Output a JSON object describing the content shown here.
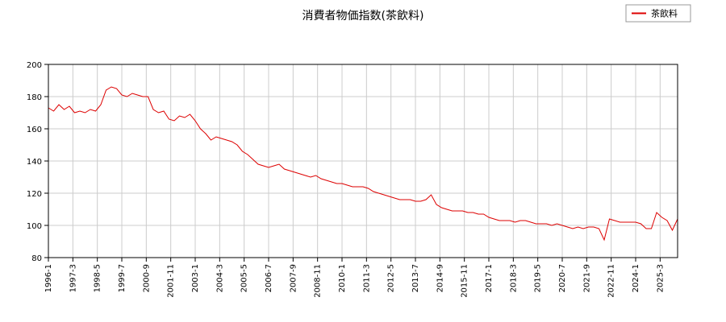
{
  "chart_data": {
    "type": "line",
    "title": "消費者物価指数(茶飲料)",
    "xlabel": "",
    "ylabel": "",
    "ylim": [
      80,
      200
    ],
    "yticks": [
      80,
      100,
      120,
      140,
      160,
      180,
      200
    ],
    "xlim": [
      "1996-01",
      "2026-01"
    ],
    "xtick_labels": [
      "1996-1",
      "1997-3",
      "1998-5",
      "1999-7",
      "2000-9",
      "2001-11",
      "2003-1",
      "2004-3",
      "2005-5",
      "2006-7",
      "2007-9",
      "2008-11",
      "2010-1",
      "2011-3",
      "2012-5",
      "2013-7",
      "2014-9",
      "2015-11",
      "2017-1",
      "2018-3",
      "2019-5",
      "2020-7",
      "2021-9",
      "2022-11",
      "2024-1",
      "2025-3"
    ],
    "grid": true,
    "legend": "top-right",
    "colors": {
      "series": "#dd0000",
      "grid": "#cccccc",
      "axis": "#000000"
    },
    "series": [
      {
        "name": "茶飲料",
        "points": [
          [
            "1996-01",
            173
          ],
          [
            "1996-04",
            171
          ],
          [
            "1996-07",
            175
          ],
          [
            "1996-10",
            172
          ],
          [
            "1997-01",
            174
          ],
          [
            "1997-04",
            170
          ],
          [
            "1997-07",
            171
          ],
          [
            "1997-10",
            170
          ],
          [
            "1998-01",
            172
          ],
          [
            "1998-04",
            171
          ],
          [
            "1998-07",
            175
          ],
          [
            "1998-10",
            184
          ],
          [
            "1999-01",
            186
          ],
          [
            "1999-04",
            185
          ],
          [
            "1999-07",
            181
          ],
          [
            "1999-10",
            180
          ],
          [
            "2000-01",
            182
          ],
          [
            "2000-04",
            181
          ],
          [
            "2000-07",
            180
          ],
          [
            "2000-10",
            180
          ],
          [
            "2001-01",
            172
          ],
          [
            "2001-04",
            170
          ],
          [
            "2001-07",
            171
          ],
          [
            "2001-10",
            166
          ],
          [
            "2002-01",
            165
          ],
          [
            "2002-04",
            168
          ],
          [
            "2002-07",
            167
          ],
          [
            "2002-10",
            169
          ],
          [
            "2003-01",
            165
          ],
          [
            "2003-04",
            160
          ],
          [
            "2003-07",
            157
          ],
          [
            "2003-10",
            153
          ],
          [
            "2004-01",
            155
          ],
          [
            "2004-04",
            154
          ],
          [
            "2004-07",
            153
          ],
          [
            "2004-10",
            152
          ],
          [
            "2005-01",
            150
          ],
          [
            "2005-04",
            146
          ],
          [
            "2005-07",
            144
          ],
          [
            "2005-10",
            141
          ],
          [
            "2006-01",
            138
          ],
          [
            "2006-04",
            137
          ],
          [
            "2006-07",
            136
          ],
          [
            "2006-10",
            137
          ],
          [
            "2007-01",
            138
          ],
          [
            "2007-04",
            135
          ],
          [
            "2007-07",
            134
          ],
          [
            "2007-10",
            133
          ],
          [
            "2008-01",
            132
          ],
          [
            "2008-04",
            131
          ],
          [
            "2008-07",
            130
          ],
          [
            "2008-10",
            131
          ],
          [
            "2009-01",
            129
          ],
          [
            "2009-04",
            128
          ],
          [
            "2009-07",
            127
          ],
          [
            "2009-10",
            126
          ],
          [
            "2010-01",
            126
          ],
          [
            "2010-04",
            125
          ],
          [
            "2010-07",
            124
          ],
          [
            "2010-10",
            124
          ],
          [
            "2011-01",
            124
          ],
          [
            "2011-04",
            123
          ],
          [
            "2011-07",
            121
          ],
          [
            "2011-10",
            120
          ],
          [
            "2012-01",
            119
          ],
          [
            "2012-04",
            118
          ],
          [
            "2012-07",
            117
          ],
          [
            "2012-10",
            116
          ],
          [
            "2013-01",
            116
          ],
          [
            "2013-04",
            116
          ],
          [
            "2013-07",
            115
          ],
          [
            "2013-10",
            115
          ],
          [
            "2014-01",
            116
          ],
          [
            "2014-04",
            119
          ],
          [
            "2014-07",
            113
          ],
          [
            "2014-10",
            111
          ],
          [
            "2015-01",
            110
          ],
          [
            "2015-04",
            109
          ],
          [
            "2015-07",
            109
          ],
          [
            "2015-10",
            109
          ],
          [
            "2016-01",
            108
          ],
          [
            "2016-04",
            108
          ],
          [
            "2016-07",
            107
          ],
          [
            "2016-10",
            107
          ],
          [
            "2017-01",
            105
          ],
          [
            "2017-04",
            104
          ],
          [
            "2017-07",
            103
          ],
          [
            "2017-10",
            103
          ],
          [
            "2018-01",
            103
          ],
          [
            "2018-04",
            102
          ],
          [
            "2018-07",
            103
          ],
          [
            "2018-10",
            103
          ],
          [
            "2019-01",
            102
          ],
          [
            "2019-04",
            101
          ],
          [
            "2019-07",
            101
          ],
          [
            "2019-10",
            101
          ],
          [
            "2020-01",
            100
          ],
          [
            "2020-04",
            101
          ],
          [
            "2020-07",
            100
          ],
          [
            "2020-10",
            99
          ],
          [
            "2021-01",
            98
          ],
          [
            "2021-04",
            99
          ],
          [
            "2021-07",
            98
          ],
          [
            "2021-10",
            99
          ],
          [
            "2022-01",
            99
          ],
          [
            "2022-04",
            98
          ],
          [
            "2022-07",
            91
          ],
          [
            "2022-10",
            104
          ],
          [
            "2023-01",
            103
          ],
          [
            "2023-04",
            102
          ],
          [
            "2023-07",
            102
          ],
          [
            "2023-10",
            102
          ],
          [
            "2024-01",
            102
          ],
          [
            "2024-04",
            101
          ],
          [
            "2024-07",
            98
          ],
          [
            "2024-10",
            98
          ],
          [
            "2025-01",
            108
          ],
          [
            "2025-04",
            105
          ],
          [
            "2025-07",
            103
          ],
          [
            "2025-10",
            97
          ],
          [
            "2026-01",
            104
          ]
        ]
      }
    ]
  }
}
